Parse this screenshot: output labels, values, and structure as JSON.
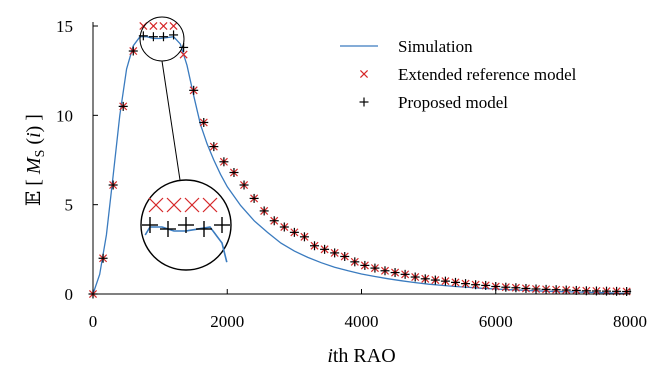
{
  "chart_data": {
    "type": "line",
    "title": "",
    "xlabel_italic": "i",
    "xlabel_rest": "th RAO",
    "ylabel_parts": [
      "𝔼 [ ",
      "M",
      "S",
      " (",
      "i",
      ") ]"
    ],
    "xlim": [
      0,
      8000
    ],
    "ylim": [
      0,
      15
    ],
    "xticks": [
      0,
      2000,
      4000,
      6000,
      8000
    ],
    "yticks": [
      0,
      5,
      10,
      15
    ],
    "grid": false,
    "legend_position": "top-right",
    "colors": {
      "simulation": "#3a7bbf",
      "extended": "#d62728",
      "proposed": "#000000"
    },
    "series": [
      {
        "name": "Simulation",
        "style": "line",
        "x": [
          0,
          100,
          200,
          300,
          400,
          500,
          600,
          700,
          800,
          900,
          1000,
          1100,
          1200,
          1300,
          1400,
          1500,
          1600,
          1700,
          1800,
          1900,
          2000,
          2200,
          2400,
          2600,
          2800,
          3000,
          3200,
          3400,
          3600,
          3800,
          4000,
          4200,
          4400,
          4600,
          4800,
          5000,
          5200,
          5400,
          5600,
          5800,
          6000,
          6200,
          6400,
          6600,
          6800,
          7000,
          7200,
          7400,
          7600,
          7800,
          8000
        ],
        "y": [
          0,
          1.1,
          3.3,
          6.6,
          10.0,
          12.6,
          13.9,
          14.4,
          14.4,
          14.3,
          14.3,
          14.35,
          14.4,
          14.0,
          12.8,
          11.1,
          9.5,
          8.4,
          7.5,
          6.7,
          6.0,
          4.95,
          4.1,
          3.45,
          2.85,
          2.4,
          2.05,
          1.75,
          1.5,
          1.3,
          1.12,
          0.98,
          0.85,
          0.74,
          0.64,
          0.55,
          0.48,
          0.42,
          0.37,
          0.32,
          0.28,
          0.24,
          0.21,
          0.18,
          0.15,
          0.13,
          0.11,
          0.09,
          0.07,
          0.05,
          0.03
        ]
      },
      {
        "name": "Extended reference model",
        "style": "x-marker",
        "x": [
          0,
          150,
          300,
          450,
          600,
          750,
          900,
          1050,
          1200,
          1350,
          1500,
          1650,
          1800,
          1950,
          2100,
          2250,
          2400,
          2550,
          2700,
          2850,
          3000,
          3150,
          3300,
          3450,
          3600,
          3750,
          3900,
          4050,
          4200,
          4350,
          4500,
          4650,
          4800,
          4950,
          5100,
          5250,
          5400,
          5550,
          5700,
          5850,
          6000,
          6150,
          6300,
          6450,
          6600,
          6750,
          6900,
          7050,
          7200,
          7350,
          7500,
          7650,
          7800,
          7950
        ],
        "y": [
          0,
          2.0,
          6.1,
          10.5,
          13.6,
          15.0,
          15.0,
          15.0,
          15.0,
          13.4,
          11.4,
          9.6,
          8.25,
          7.4,
          6.8,
          6.1,
          5.35,
          4.65,
          4.1,
          3.75,
          3.45,
          3.2,
          2.7,
          2.5,
          2.3,
          2.1,
          1.8,
          1.6,
          1.45,
          1.3,
          1.2,
          1.1,
          0.95,
          0.85,
          0.78,
          0.72,
          0.65,
          0.58,
          0.52,
          0.48,
          0.42,
          0.38,
          0.35,
          0.31,
          0.28,
          0.26,
          0.24,
          0.22,
          0.2,
          0.18,
          0.17,
          0.16,
          0.15,
          0.14
        ]
      },
      {
        "name": "Proposed model",
        "style": "plus-marker",
        "x": [
          0,
          150,
          300,
          450,
          600,
          750,
          900,
          1050,
          1200,
          1350,
          1500,
          1650,
          1800,
          1950,
          2100,
          2250,
          2400,
          2550,
          2700,
          2850,
          3000,
          3150,
          3300,
          3450,
          3600,
          3750,
          3900,
          4050,
          4200,
          4350,
          4500,
          4650,
          4800,
          4950,
          5100,
          5250,
          5400,
          5550,
          5700,
          5850,
          6000,
          6150,
          6300,
          6450,
          6600,
          6750,
          6900,
          7050,
          7200,
          7350,
          7500,
          7650,
          7800,
          7950
        ],
        "y": [
          0,
          2.0,
          6.1,
          10.5,
          13.6,
          14.45,
          14.4,
          14.4,
          14.5,
          13.8,
          11.4,
          9.6,
          8.25,
          7.4,
          6.8,
          6.1,
          5.35,
          4.65,
          4.1,
          3.75,
          3.45,
          3.2,
          2.7,
          2.5,
          2.3,
          2.1,
          1.8,
          1.6,
          1.45,
          1.3,
          1.2,
          1.1,
          0.95,
          0.85,
          0.78,
          0.72,
          0.65,
          0.58,
          0.52,
          0.48,
          0.42,
          0.38,
          0.35,
          0.31,
          0.28,
          0.26,
          0.24,
          0.22,
          0.2,
          0.18,
          0.17,
          0.16,
          0.15,
          0.14
        ]
      }
    ],
    "inset": {
      "source_x_range": [
        750,
        1250
      ],
      "extended_x": [
        750,
        900,
        1050,
        1200
      ],
      "proposed_x": [
        750,
        900,
        1050,
        1200,
        1350
      ]
    }
  }
}
